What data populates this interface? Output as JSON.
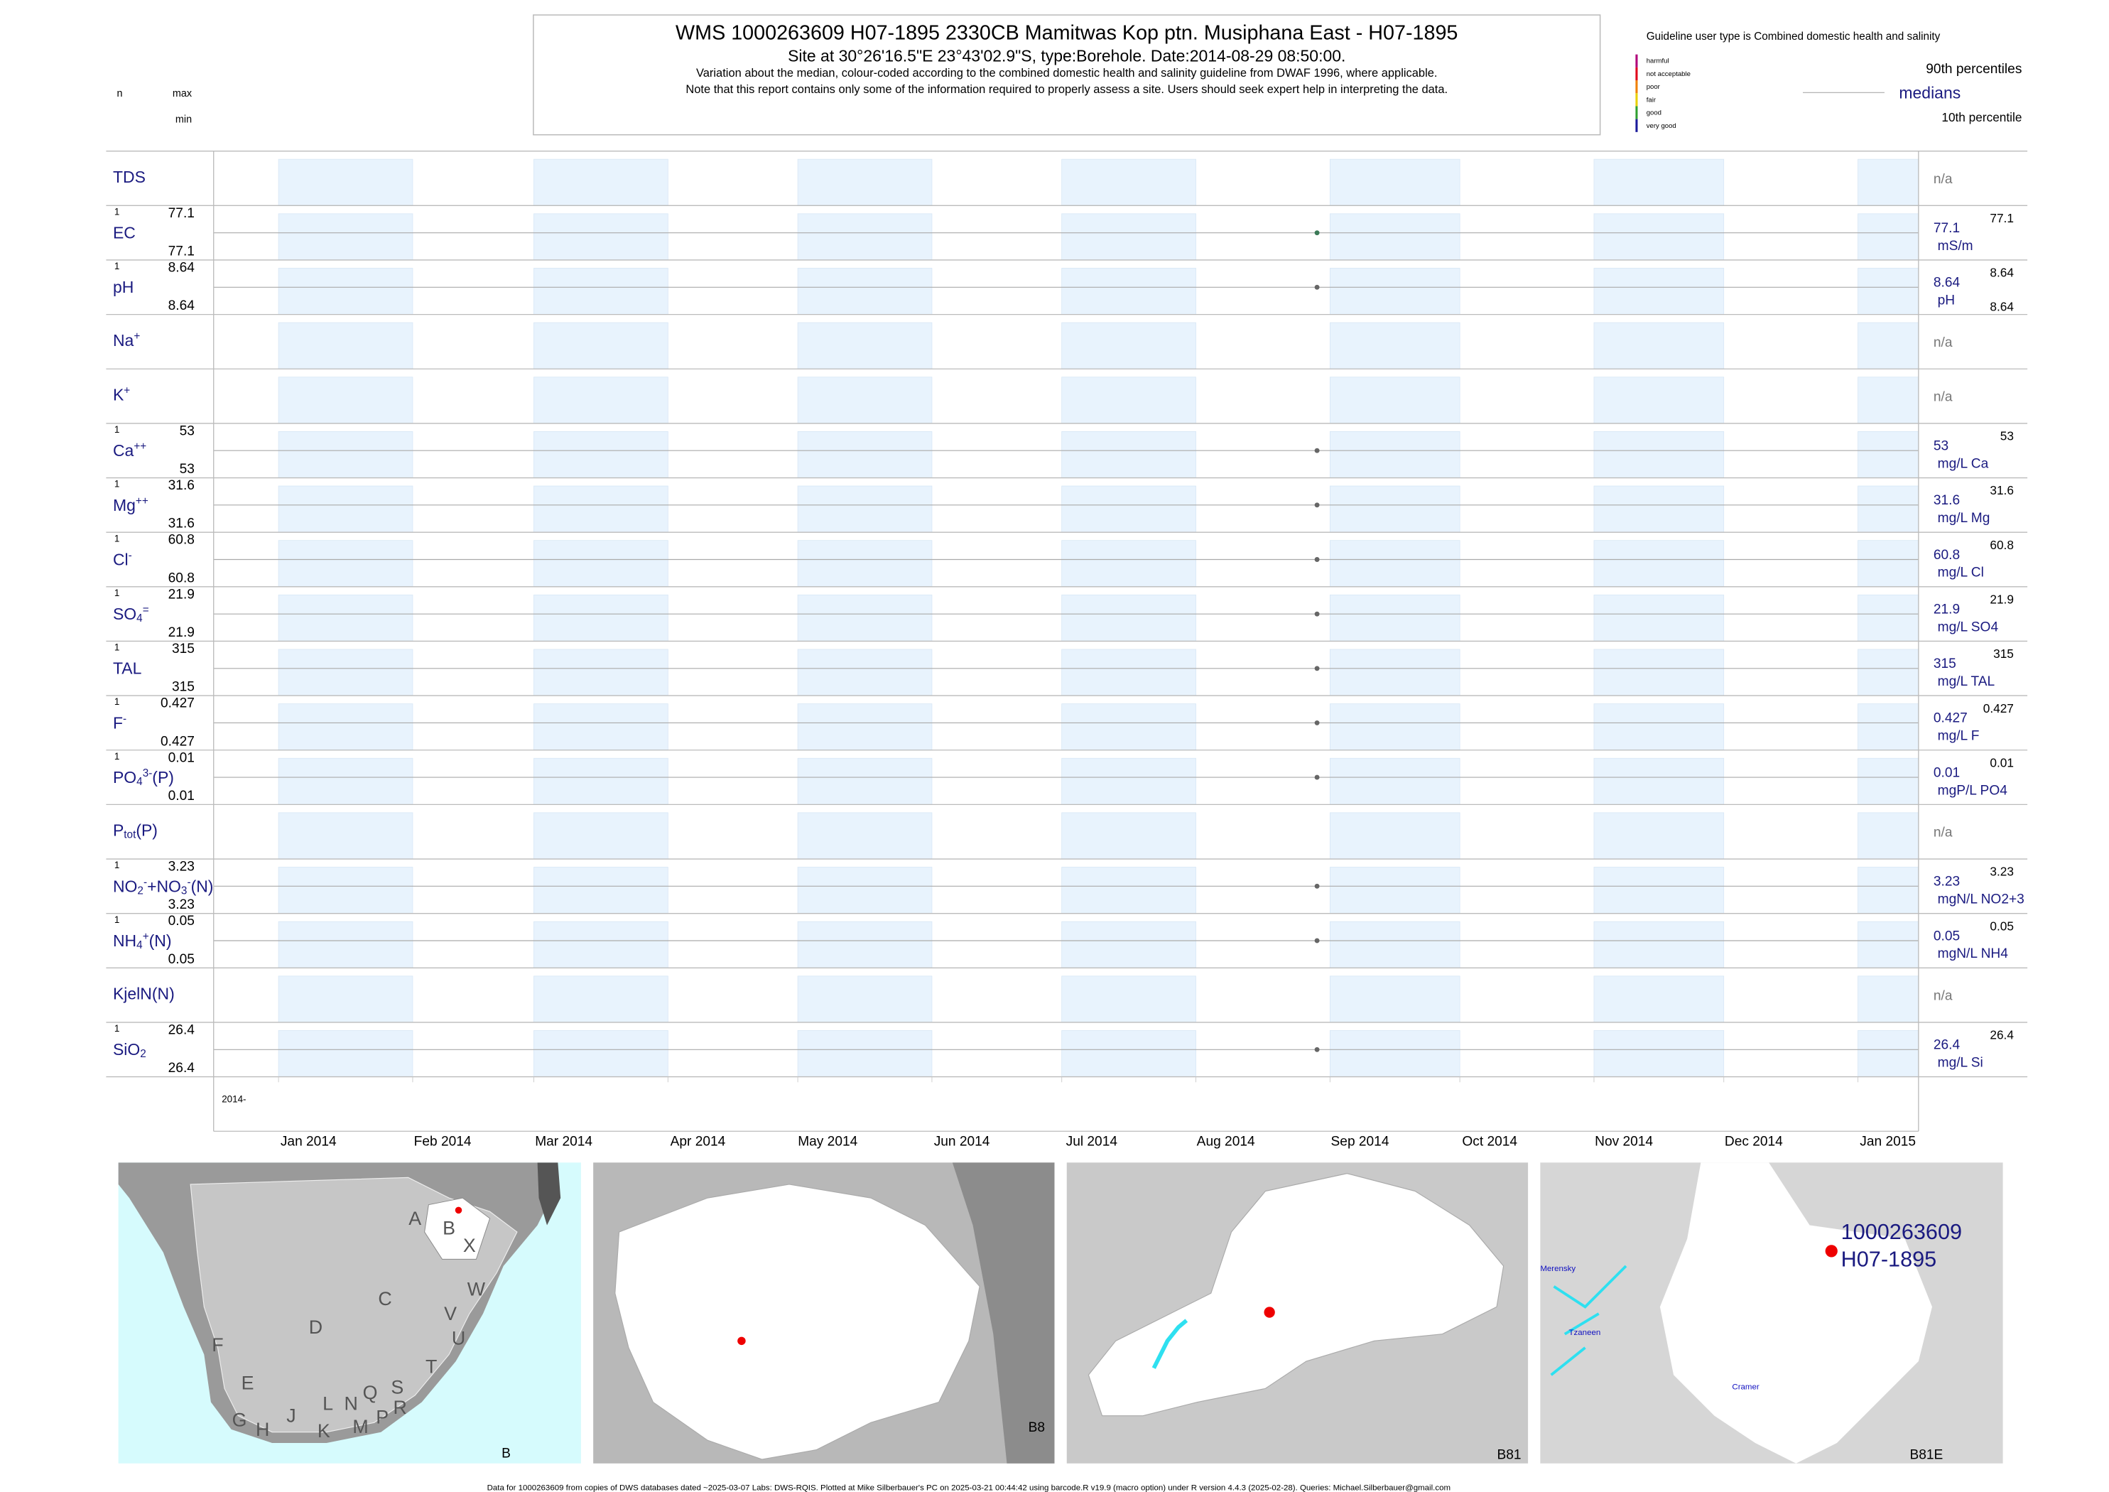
{
  "header": {
    "title": "WMS 1000263609 H07-1895 2330CB Mamitwas Kop ptn. Musiphana East - H07-1895",
    "site": "Site at 30°26'16.5\"E 23°43'02.9\"S, type:Borehole. Date:2014-08-29 08:50:00.",
    "variation": "Variation about the median,  colour-coded according to the combined domestic health and salinity guideline from DWAF 1996, where applicable.",
    "note": "Note that this report contains only some of the information required to properly assess a site. Users should seek expert help in interpreting the data."
  },
  "left_header": {
    "n": "n",
    "max": "max",
    "min": "min"
  },
  "legend": {
    "guideline": "Guideline user type is Combined domestic health and salinity",
    "classes": [
      {
        "label": "harmful",
        "color": "#b0007a"
      },
      {
        "label": "not acceptable",
        "color": "#e0001a"
      },
      {
        "label": "poor",
        "color": "#f08000"
      },
      {
        "label": "fair",
        "color": "#e8d000"
      },
      {
        "label": "good",
        "color": "#30a030"
      },
      {
        "label": "very good",
        "color": "#1a1a9a"
      }
    ],
    "p90": "90th percentiles",
    "medians": "medians",
    "p10": "10th percentile"
  },
  "chart_data": {
    "type": "strip",
    "xlim": [
      "2013-12-17",
      "2015-01-15"
    ],
    "year_label": "2014-",
    "xticks": [
      {
        "value": "2014-01-01",
        "label": "Jan 2014"
      },
      {
        "value": "2014-02-01",
        "label": "Feb 2014"
      },
      {
        "value": "2014-03-01",
        "label": "Mar 2014"
      },
      {
        "value": "2014-04-01",
        "label": "Apr 2014"
      },
      {
        "value": "2014-05-01",
        "label": "May 2014"
      },
      {
        "value": "2014-06-01",
        "label": "Jun 2014"
      },
      {
        "value": "2014-07-01",
        "label": "Jul 2014"
      },
      {
        "value": "2014-08-01",
        "label": "Aug 2014"
      },
      {
        "value": "2014-09-01",
        "label": "Sep 2014"
      },
      {
        "value": "2014-10-01",
        "label": "Oct 2014"
      },
      {
        "value": "2014-11-01",
        "label": "Nov 2014"
      },
      {
        "value": "2014-12-01",
        "label": "Dec 2014"
      },
      {
        "value": "2015-01-01",
        "label": "Jan 2015"
      }
    ],
    "rows": [
      {
        "label": [
          {
            "text": "TDS"
          }
        ],
        "status": "n/a"
      },
      {
        "label": [
          {
            "text": "EC"
          }
        ],
        "n": 1,
        "max": 77.1,
        "min": 77.1,
        "median": 77.1,
        "unit": "mS/m",
        "date": "2014-08-29",
        "color": "#3b7a57"
      },
      {
        "label": [
          {
            "text": "pH"
          }
        ],
        "n": 1,
        "max": 8.64,
        "min": 8.64,
        "median": 8.64,
        "unit": "pH",
        "date": "2014-08-29",
        "color": "#666666",
        "right_min": true
      },
      {
        "label": [
          {
            "text": "Na"
          },
          {
            "text": "+",
            "pos": "sup"
          }
        ],
        "status": "n/a"
      },
      {
        "label": [
          {
            "text": "K"
          },
          {
            "text": "+",
            "pos": "sup"
          }
        ],
        "status": "n/a"
      },
      {
        "label": [
          {
            "text": "Ca"
          },
          {
            "text": "++",
            "pos": "sup"
          }
        ],
        "n": 1,
        "max": 53,
        "min": 53,
        "median": 53,
        "unit": "mg/L Ca",
        "date": "2014-08-29",
        "color": "#666666"
      },
      {
        "label": [
          {
            "text": "Mg"
          },
          {
            "text": "++",
            "pos": "sup"
          }
        ],
        "n": 1,
        "max": 31.6,
        "min": 31.6,
        "median": 31.6,
        "unit": "mg/L Mg",
        "date": "2014-08-29",
        "color": "#666666"
      },
      {
        "label": [
          {
            "text": "Cl"
          },
          {
            "text": "-",
            "pos": "sup"
          }
        ],
        "n": 1,
        "max": 60.8,
        "min": 60.8,
        "median": 60.8,
        "unit": "mg/L Cl",
        "date": "2014-08-29",
        "color": "#666666"
      },
      {
        "label": [
          {
            "text": "SO"
          },
          {
            "text": "4",
            "pos": "sub"
          },
          {
            "text": "=",
            "pos": "sup"
          }
        ],
        "n": 1,
        "max": 21.9,
        "min": 21.9,
        "median": 21.9,
        "unit": "mg/L SO4",
        "date": "2014-08-29",
        "color": "#666666"
      },
      {
        "label": [
          {
            "text": "TAL"
          }
        ],
        "n": 1,
        "max": 315,
        "min": 315,
        "median": 315,
        "unit": "mg/L TAL",
        "date": "2014-08-29",
        "color": "#666666"
      },
      {
        "label": [
          {
            "text": "F"
          },
          {
            "text": "-",
            "pos": "sup"
          }
        ],
        "n": 1,
        "max": 0.427,
        "min": 0.427,
        "median": 0.427,
        "unit": "mg/L F",
        "date": "2014-08-29",
        "color": "#666666"
      },
      {
        "label": [
          {
            "text": "PO"
          },
          {
            "text": "4",
            "pos": "sub"
          },
          {
            "text": "3-",
            "pos": "sup"
          },
          {
            "text": "(P)"
          }
        ],
        "n": 1,
        "max": 0.01,
        "min": 0.01,
        "median": 0.01,
        "unit": "mgP/L PO4",
        "date": "2014-08-29",
        "color": "#666666"
      },
      {
        "label": [
          {
            "text": "P"
          },
          {
            "text": "tot",
            "pos": "sub"
          },
          {
            "text": "(P)"
          }
        ],
        "status": "n/a"
      },
      {
        "label": [
          {
            "text": "NO"
          },
          {
            "text": "2",
            "pos": "sub"
          },
          {
            "text": "-",
            "pos": "sup"
          },
          {
            "text": "+NO"
          },
          {
            "text": "3",
            "pos": "sub"
          },
          {
            "text": "-",
            "pos": "sup"
          },
          {
            "text": "(N)"
          }
        ],
        "n": 1,
        "max": 3.23,
        "min": 3.23,
        "median": 3.23,
        "unit": "mgN/L NO2+3",
        "date": "2014-08-29",
        "color": "#666666"
      },
      {
        "label": [
          {
            "text": "NH"
          },
          {
            "text": "4",
            "pos": "sub"
          },
          {
            "text": "+",
            "pos": "sup"
          },
          {
            "text": "(N)"
          }
        ],
        "n": 1,
        "max": 0.05,
        "min": 0.05,
        "median": 0.05,
        "unit": "mgN/L NH4",
        "date": "2014-08-29",
        "color": "#666666"
      },
      {
        "label": [
          {
            "text": "KjelN(N)"
          }
        ],
        "status": "n/a"
      },
      {
        "label": [
          {
            "text": "SiO"
          },
          {
            "text": "2",
            "pos": "sub"
          }
        ],
        "n": 1,
        "max": 26.4,
        "min": 26.4,
        "median": 26.4,
        "unit": "mg/L Si",
        "date": "2014-08-29",
        "color": "#666666"
      }
    ]
  },
  "maps": {
    "letters": [
      "A",
      "B",
      "X",
      "C",
      "W",
      "D",
      "V",
      "U",
      "F",
      "T",
      "E",
      "J",
      "L",
      "N",
      "Q",
      "S",
      "R",
      "G",
      "H",
      "K",
      "M",
      "P"
    ],
    "map1_caption": "B",
    "map2_caption": "B8",
    "map3_caption": "B81",
    "map4_caption": "B81E",
    "site_id": "1000263609",
    "site_code": "H07-1895",
    "towns": [
      "Merensky",
      "Tzaneen",
      "Cramer"
    ]
  },
  "footer": "Data for 1000263609 from copies of DWS databases dated ~2025-03-07 Labs: DWS-RQIS. Plotted at Mike Silberbauer's PC on 2025-03-21 00:44:42 using barcode.R v19.9 (macro option) under R version 4.4.3 (2025-02-28). Queries: Michael.Silberbauer@gmail.com"
}
